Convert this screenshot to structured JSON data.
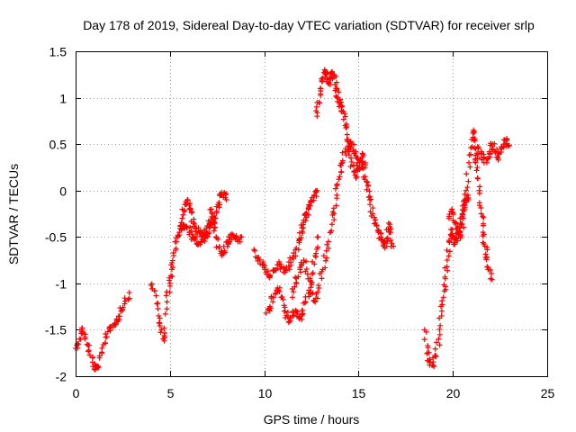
{
  "chart_data": {
    "type": "scatter",
    "title": "Day 178 of 2019, Sidereal Day-to-day VTEC variation (SDTVAR) for receiver srlp",
    "xlabel": "GPS time / hours",
    "ylabel": "SDTVAR / TECUs",
    "xlim": [
      0,
      25
    ],
    "ylim": [
      -2,
      1.5
    ],
    "xticks": [
      0,
      5,
      10,
      15,
      20,
      25
    ],
    "xtick_labels": [
      "0",
      "5",
      "10",
      "15",
      "20",
      "25"
    ],
    "yticks": [
      -2,
      -1.5,
      -1,
      -0.5,
      0,
      0.5,
      1,
      1.5
    ],
    "ytick_labels": [
      "-2",
      "-1.5",
      "-1",
      "-0.5",
      "0",
      "0.5",
      "1",
      "1.5"
    ],
    "grid": true,
    "marker": "+",
    "color": "#ff0000",
    "series": [
      {
        "name": "track 1",
        "points": [
          [
            0.0,
            -1.7
          ],
          [
            0.2,
            -1.6
          ],
          [
            0.35,
            -1.48
          ],
          [
            0.5,
            -1.58
          ],
          [
            0.7,
            -1.72
          ],
          [
            0.9,
            -1.85
          ],
          [
            1.05,
            -1.93
          ],
          [
            1.2,
            -1.9
          ],
          [
            1.4,
            -1.75
          ],
          [
            1.6,
            -1.58
          ],
          [
            1.8,
            -1.48
          ],
          [
            2.0,
            -1.45
          ],
          [
            2.2,
            -1.4
          ],
          [
            2.4,
            -1.3
          ],
          [
            2.6,
            -1.22
          ],
          [
            2.85,
            -1.1
          ]
        ]
      },
      {
        "name": "track 2",
        "points": [
          [
            4.0,
            -1.02
          ],
          [
            4.2,
            -1.08
          ],
          [
            4.4,
            -1.35
          ],
          [
            4.55,
            -1.5
          ],
          [
            4.7,
            -1.62
          ],
          [
            4.85,
            -1.2
          ],
          [
            5.0,
            -1.0
          ],
          [
            5.1,
            -0.85
          ],
          [
            5.2,
            -0.7
          ],
          [
            5.35,
            -0.55
          ],
          [
            5.5,
            -0.45
          ],
          [
            5.65,
            -0.3
          ],
          [
            5.8,
            -0.15
          ],
          [
            5.95,
            -0.1
          ],
          [
            6.1,
            -0.2
          ],
          [
            6.25,
            -0.35
          ],
          [
            6.4,
            -0.4
          ],
          [
            6.55,
            -0.45
          ],
          [
            6.7,
            -0.5
          ],
          [
            6.85,
            -0.45
          ],
          [
            7.0,
            -0.5
          ],
          [
            7.1,
            -0.35
          ],
          [
            7.2,
            -0.2
          ],
          [
            7.3,
            -0.3
          ],
          [
            7.45,
            -0.5
          ],
          [
            7.6,
            -0.62
          ],
          [
            7.75,
            -0.7
          ],
          [
            7.9,
            -0.65
          ],
          [
            8.05,
            -0.55
          ],
          [
            8.2,
            -0.5
          ],
          [
            8.4,
            -0.5
          ],
          [
            8.6,
            -0.55
          ],
          [
            8.8,
            -0.5
          ]
        ]
      },
      {
        "name": "track 3",
        "points": [
          [
            5.6,
            -0.42
          ],
          [
            5.75,
            -0.38
          ],
          [
            5.9,
            -0.4
          ],
          [
            6.05,
            -0.45
          ],
          [
            6.2,
            -0.5
          ],
          [
            6.35,
            -0.52
          ],
          [
            6.5,
            -0.58
          ],
          [
            6.65,
            -0.55
          ],
          [
            6.8,
            -0.5
          ],
          [
            6.95,
            -0.45
          ],
          [
            7.1,
            -0.4
          ],
          [
            7.25,
            -0.35
          ],
          [
            7.4,
            -0.3
          ],
          [
            7.55,
            -0.15
          ],
          [
            7.7,
            -0.05
          ],
          [
            7.85,
            -0.05
          ],
          [
            8.0,
            -0.1
          ]
        ]
      },
      {
        "name": "track 4",
        "points": [
          [
            9.5,
            -0.65
          ],
          [
            9.7,
            -0.72
          ],
          [
            9.9,
            -0.8
          ],
          [
            10.1,
            -0.88
          ],
          [
            10.3,
            -0.92
          ],
          [
            10.5,
            -0.86
          ],
          [
            10.7,
            -0.8
          ],
          [
            10.9,
            -0.82
          ],
          [
            11.1,
            -0.88
          ],
          [
            11.3,
            -0.82
          ],
          [
            11.5,
            -0.72
          ],
          [
            11.7,
            -0.62
          ],
          [
            11.85,
            -0.52
          ],
          [
            12.0,
            -0.4
          ],
          [
            12.1,
            -0.32
          ],
          [
            12.2,
            -0.25
          ],
          [
            12.35,
            -0.2
          ],
          [
            12.5,
            -0.12
          ],
          [
            12.65,
            -0.05
          ],
          [
            12.8,
            0.0
          ]
        ]
      },
      {
        "name": "track 5",
        "points": [
          [
            10.1,
            -1.32
          ],
          [
            10.3,
            -1.25
          ],
          [
            10.5,
            -1.15
          ],
          [
            10.7,
            -1.05
          ],
          [
            10.9,
            -1.15
          ],
          [
            11.1,
            -1.3
          ],
          [
            11.3,
            -1.42
          ],
          [
            11.5,
            -1.35
          ],
          [
            11.7,
            -1.3
          ],
          [
            11.85,
            -1.38
          ],
          [
            12.0,
            -1.35
          ],
          [
            12.2,
            -1.2
          ],
          [
            12.4,
            -1.1
          ],
          [
            12.55,
            -0.9
          ],
          [
            12.7,
            -0.7
          ],
          [
            12.85,
            -0.5
          ]
        ]
      },
      {
        "name": "track 6",
        "points": [
          [
            11.5,
            -1.15
          ],
          [
            11.7,
            -1.0
          ],
          [
            11.9,
            -0.85
          ],
          [
            12.1,
            -0.75
          ],
          [
            12.3,
            -0.9
          ],
          [
            12.5,
            -1.1
          ],
          [
            12.7,
            -1.2
          ],
          [
            12.9,
            -1.05
          ],
          [
            13.1,
            -0.85
          ],
          [
            13.3,
            -0.65
          ],
          [
            13.5,
            -0.45
          ],
          [
            13.7,
            -0.25
          ],
          [
            13.85,
            -0.05
          ],
          [
            14.0,
            0.15
          ],
          [
            14.15,
            0.3
          ],
          [
            14.3,
            0.42
          ],
          [
            14.45,
            0.48
          ],
          [
            14.6,
            0.5
          ],
          [
            14.75,
            0.42
          ],
          [
            14.9,
            0.35
          ],
          [
            15.05,
            0.25
          ],
          [
            15.2,
            0.3
          ],
          [
            15.35,
            0.15
          ],
          [
            15.5,
            0.05
          ],
          [
            15.6,
            -0.1
          ],
          [
            15.75,
            -0.25
          ],
          [
            15.9,
            -0.35
          ],
          [
            16.05,
            -0.45
          ],
          [
            16.2,
            -0.5
          ],
          [
            16.3,
            -0.55
          ],
          [
            16.4,
            -0.62
          ],
          [
            16.5,
            -0.52
          ],
          [
            16.6,
            -0.35
          ],
          [
            16.7,
            -0.45
          ],
          [
            16.85,
            -0.6
          ]
        ]
      },
      {
        "name": "track 7",
        "points": [
          [
            12.8,
            0.8
          ],
          [
            12.9,
            0.95
          ],
          [
            13.0,
            1.1
          ],
          [
            13.1,
            1.2
          ],
          [
            13.2,
            1.3
          ],
          [
            13.3,
            1.25
          ],
          [
            13.4,
            1.15
          ],
          [
            13.5,
            1.2
          ],
          [
            13.6,
            1.28
          ],
          [
            13.7,
            1.22
          ],
          [
            13.8,
            1.1
          ],
          [
            13.9,
            1.0
          ],
          [
            14.0,
            0.95
          ],
          [
            14.1,
            0.9
          ],
          [
            14.2,
            0.85
          ],
          [
            14.3,
            0.7
          ],
          [
            14.45,
            0.55
          ],
          [
            14.6,
            0.35
          ],
          [
            14.75,
            0.2
          ],
          [
            14.9,
            0.15
          ],
          [
            15.05,
            0.3
          ],
          [
            15.2,
            0.4
          ],
          [
            15.35,
            0.25
          ]
        ]
      },
      {
        "name": "track 8",
        "points": [
          [
            18.5,
            -1.5
          ],
          [
            18.65,
            -1.75
          ],
          [
            18.8,
            -1.85
          ],
          [
            18.95,
            -1.88
          ],
          [
            19.1,
            -1.78
          ],
          [
            19.25,
            -1.6
          ],
          [
            19.4,
            -1.35
          ],
          [
            19.5,
            -1.15
          ],
          [
            19.6,
            -0.95
          ],
          [
            19.7,
            -0.75
          ],
          [
            19.8,
            -0.55
          ],
          [
            19.9,
            -0.42
          ],
          [
            20.0,
            -0.5
          ],
          [
            20.1,
            -0.58
          ],
          [
            20.2,
            -0.52
          ],
          [
            20.3,
            -0.45
          ],
          [
            20.4,
            -0.35
          ],
          [
            20.5,
            -0.25
          ],
          [
            20.6,
            -0.15
          ],
          [
            20.7,
            -0.1
          ],
          [
            20.8,
            -0.05
          ]
        ]
      },
      {
        "name": "track 9",
        "points": [
          [
            19.8,
            -0.3
          ],
          [
            19.95,
            -0.2
          ],
          [
            20.1,
            -0.35
          ],
          [
            20.25,
            -0.45
          ],
          [
            20.4,
            -0.5
          ],
          [
            20.55,
            -0.3
          ],
          [
            20.7,
            0.0
          ],
          [
            20.85,
            0.3
          ],
          [
            21.0,
            0.55
          ],
          [
            21.1,
            0.65
          ],
          [
            21.2,
            0.45
          ],
          [
            21.3,
            0.25
          ],
          [
            21.4,
            0.0
          ],
          [
            21.5,
            -0.25
          ],
          [
            21.6,
            -0.45
          ],
          [
            21.7,
            -0.6
          ],
          [
            21.8,
            -0.72
          ],
          [
            21.9,
            -0.85
          ],
          [
            22.0,
            -0.95
          ]
        ]
      },
      {
        "name": "track 10",
        "points": [
          [
            21.2,
            0.3
          ],
          [
            21.35,
            0.45
          ],
          [
            21.5,
            0.4
          ],
          [
            21.65,
            0.35
          ],
          [
            21.8,
            0.3
          ],
          [
            21.95,
            0.4
          ],
          [
            22.1,
            0.5
          ],
          [
            22.25,
            0.42
          ],
          [
            22.4,
            0.35
          ],
          [
            22.55,
            0.45
          ],
          [
            22.7,
            0.5
          ],
          [
            22.85,
            0.55
          ],
          [
            22.95,
            0.48
          ]
        ]
      }
    ]
  }
}
